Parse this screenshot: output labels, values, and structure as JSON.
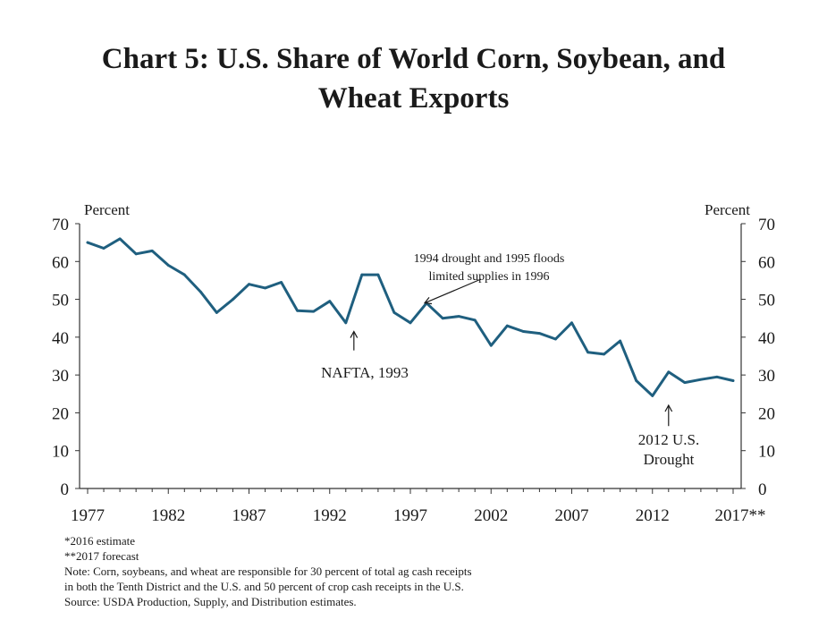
{
  "title": {
    "line1": "Chart 5: U.S. Share of World Corn, Soybean, and",
    "line2": "Wheat Exports"
  },
  "colors": {
    "line": "#1f5f7f",
    "axis": "#333333"
  },
  "chart_data": {
    "type": "line",
    "title": "Chart 5: U.S. Share of World Corn, Soybean, and Wheat Exports",
    "ylabel_left": "Percent",
    "ylabel_right": "Percent",
    "ylim": [
      0,
      70
    ],
    "yticks": [
      0,
      10,
      20,
      30,
      40,
      50,
      60,
      70
    ],
    "xlim": [
      1977,
      2017
    ],
    "xtick_labels": [
      "1977",
      "1982",
      "1987",
      "1992",
      "1997",
      "2002",
      "2007",
      "2012",
      "2017**"
    ],
    "xtick_years": [
      1977,
      1982,
      1987,
      1992,
      1997,
      2002,
      2007,
      2012,
      2017
    ],
    "grid": false,
    "series": [
      {
        "x": [
          1977,
          1978,
          1979,
          1980,
          1981,
          1982,
          1983,
          1984,
          1985,
          1986,
          1987,
          1988,
          1989,
          1990,
          1991,
          1992,
          1993,
          1994,
          1995,
          1996,
          1997,
          1998,
          1999,
          2000,
          2001,
          2002,
          2003,
          2004,
          2005,
          2006,
          2007,
          2008,
          2009,
          2010,
          2011,
          2012,
          2013,
          2014,
          2015,
          2016,
          2017
        ],
        "values": [
          65,
          63.5,
          66,
          62,
          62.8,
          59,
          56.5,
          52,
          46.5,
          50,
          54,
          53,
          54.5,
          47,
          46.8,
          49.5,
          43.8,
          56.5,
          56.5,
          46.5,
          43.8,
          49,
          45,
          45.5,
          44.5,
          37.8,
          43,
          41.5,
          41,
          39.5,
          43.8,
          36,
          35.5,
          39,
          28.5,
          24.5,
          30.8,
          28,
          28.8,
          29.5,
          28.5
        ]
      }
    ],
    "annotations": [
      {
        "text": "NAFTA, 1993",
        "x": 1993.5,
        "y": 41.5,
        "arrow": "up"
      },
      {
        "lines": [
          "1994 drought and 1995 floods",
          "limited supplies in 1996"
        ],
        "x": 1998,
        "y": 49.5,
        "arrow": "left"
      },
      {
        "lines": [
          "2012 U.S.",
          "Drought"
        ],
        "x": 2013,
        "y": 22,
        "arrow": "up"
      }
    ]
  },
  "notes": [
    "*2016 estimate",
    "**2017 forecast",
    "Note: Corn, soybeans, and wheat are responsible for 30 percent of total ag cash receipts",
    "in both the Tenth District and the U.S. and 50 percent of crop cash receipts in the U.S.",
    "Source: USDA Production, Supply, and Distribution estimates."
  ]
}
